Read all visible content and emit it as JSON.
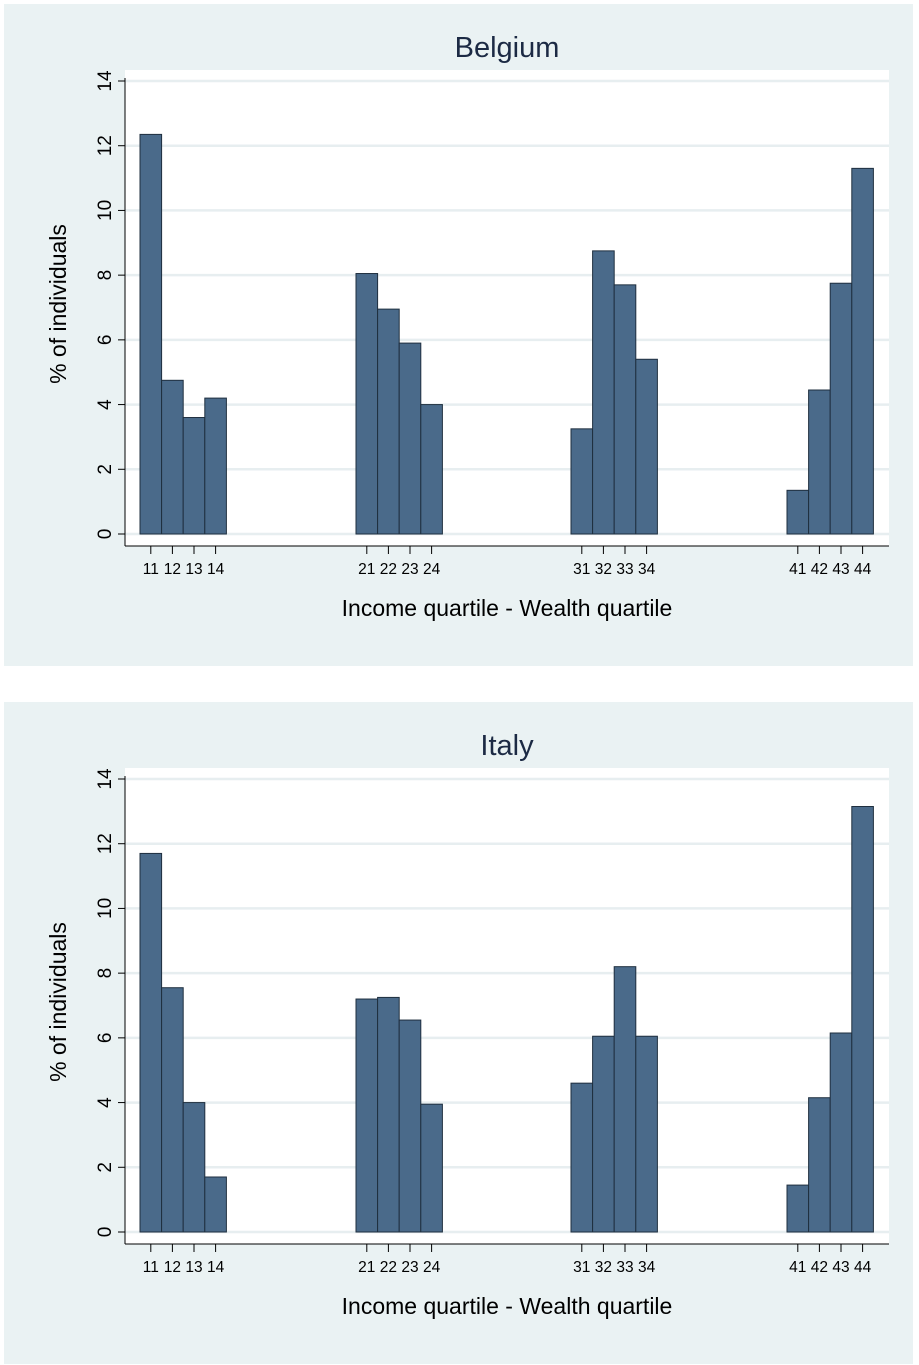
{
  "chart_data": [
    {
      "type": "bar",
      "title": "Belgium",
      "xlabel": "Income quartile - Wealth quartile",
      "ylabel": "% of individuals",
      "ylim": [
        0,
        14
      ],
      "yticks": [
        0,
        2,
        4,
        6,
        8,
        10,
        12,
        14
      ],
      "grid": true,
      "categories": [
        "11",
        "12",
        "13",
        "14",
        "21",
        "22",
        "23",
        "24",
        "31",
        "32",
        "33",
        "34",
        "41",
        "42",
        "43",
        "44"
      ],
      "values": [
        12.35,
        4.75,
        3.6,
        4.2,
        8.05,
        6.95,
        5.9,
        4.0,
        3.25,
        8.75,
        7.7,
        5.4,
        1.35,
        4.45,
        7.75,
        11.3
      ],
      "colors": {
        "bar": "#4a6a8a",
        "background": "#eaf2f3",
        "plot": "#ffffff",
        "grid": "#e7eef0"
      }
    },
    {
      "type": "bar",
      "title": "Italy",
      "xlabel": "Income quartile - Wealth quartile",
      "ylabel": "% of individuals",
      "ylim": [
        0,
        14
      ],
      "yticks": [
        0,
        2,
        4,
        6,
        8,
        10,
        12,
        14
      ],
      "grid": true,
      "categories": [
        "11",
        "12",
        "13",
        "14",
        "21",
        "22",
        "23",
        "24",
        "31",
        "32",
        "33",
        "34",
        "41",
        "42",
        "43",
        "44"
      ],
      "values": [
        11.7,
        7.55,
        4.0,
        1.7,
        7.2,
        7.25,
        6.55,
        3.95,
        4.6,
        6.05,
        8.2,
        6.05,
        1.45,
        4.15,
        6.15,
        13.15
      ],
      "colors": {
        "bar": "#4a6a8a",
        "background": "#eaf2f3",
        "plot": "#ffffff",
        "grid": "#e7eef0"
      }
    }
  ]
}
